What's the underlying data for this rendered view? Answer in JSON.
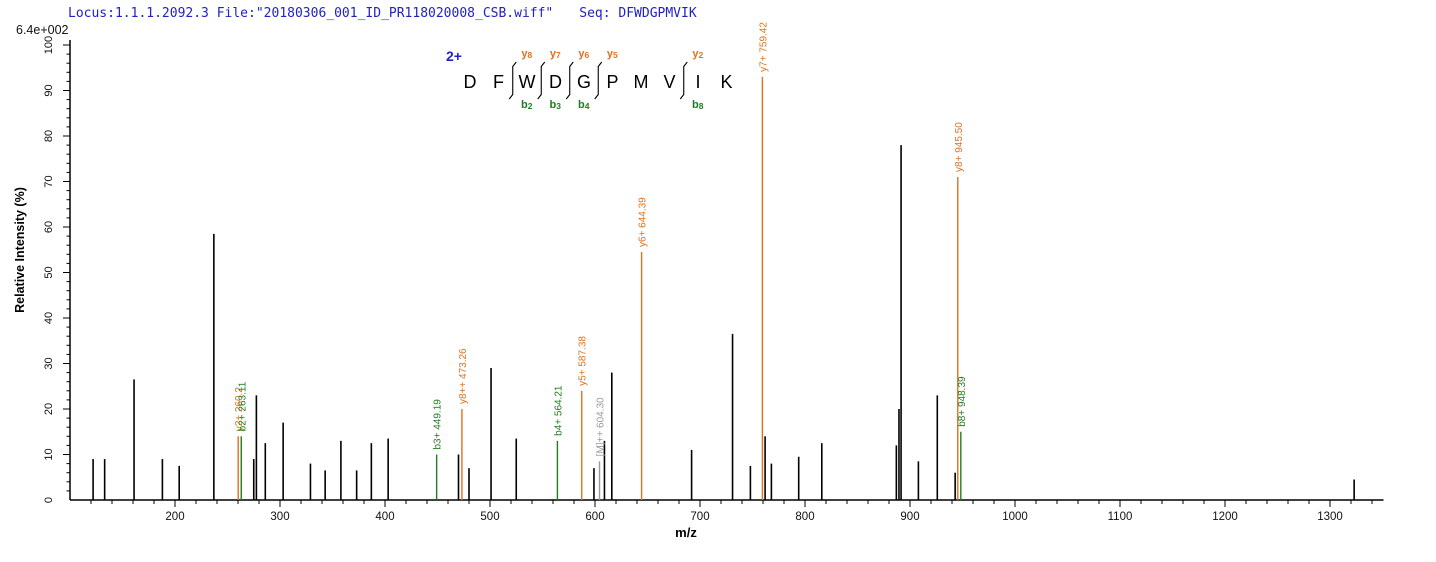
{
  "header": {
    "locus_file": "Locus:1.1.1.2092.3 File:\"20180306_001_ID_PR118020008_CSB.wiff\"",
    "seq_info": "Seq: DFWDGPMVIK",
    "intensity_scale": "6.4e+002"
  },
  "chart_data": {
    "type": "bar",
    "subtype": "ms2-stick-spectrum",
    "xlabel": "m/z",
    "ylabel": "Relative  Intensity (%)",
    "xlim": [
      100,
      1350
    ],
    "ylim": [
      0,
      100
    ],
    "x_major_ticks": [
      200,
      300,
      400,
      500,
      600,
      700,
      800,
      900,
      1000,
      1100,
      1200,
      1300
    ],
    "x_minor_step": 20,
    "y_major_ticks": [
      0,
      10,
      20,
      30,
      40,
      50,
      60,
      70,
      80,
      90,
      100
    ],
    "y_minor_step": 2,
    "grid": "off",
    "precursor_charge": "2+",
    "peptide": {
      "sequence": [
        "D",
        "F",
        "W",
        "D",
        "G",
        "P",
        "M",
        "V",
        "I",
        "K"
      ],
      "cleavages": [
        {
          "after_index": 1,
          "y_label": "y8",
          "b_label": "b2"
        },
        {
          "after_index": 2,
          "y_label": "y7",
          "b_label": "b3"
        },
        {
          "after_index": 3,
          "y_label": "y6",
          "b_label": "b4"
        },
        {
          "after_index": 4,
          "y_label": "y5",
          "b_label": ""
        },
        {
          "after_index": 7,
          "y_label": "y2",
          "b_label": "b8"
        }
      ]
    },
    "annotated_peaks": [
      {
        "mz": 260.2,
        "intensity": 14,
        "ion": "y",
        "label": "y2+ 260.2"
      },
      {
        "mz": 263.11,
        "intensity": 14,
        "ion": "b",
        "label": "b2+ 263.11"
      },
      {
        "mz": 449.19,
        "intensity": 10,
        "ion": "b",
        "label": "b3+ 449.19"
      },
      {
        "mz": 473.26,
        "intensity": 20,
        "ion": "y",
        "label": "y8++ 473.26"
      },
      {
        "mz": 564.21,
        "intensity": 13,
        "ion": "b",
        "label": "b4+ 564.21"
      },
      {
        "mz": 587.38,
        "intensity": 24,
        "ion": "y",
        "label": "y5+ 587.38"
      },
      {
        "mz": 604.3,
        "intensity": 8.5,
        "ion": "precursor",
        "label": "[M]++ 604.30"
      },
      {
        "mz": 644.39,
        "intensity": 54.5,
        "ion": "y",
        "label": "y6+ 644.39"
      },
      {
        "mz": 759.42,
        "intensity": 93,
        "ion": "y",
        "label": "y7+ 759.42"
      },
      {
        "mz": 945.5,
        "intensity": 71,
        "ion": "y",
        "label": "y8+ 945.50"
      },
      {
        "mz": 948.39,
        "intensity": 15,
        "ion": "b",
        "label": "b8+ 948.39"
      }
    ],
    "unassigned_peaks": [
      [
        122,
        9
      ],
      [
        133,
        9
      ],
      [
        161,
        26.5
      ],
      [
        188,
        9
      ],
      [
        204,
        7.5
      ],
      [
        237,
        58.5
      ],
      [
        275,
        9
      ],
      [
        277.5,
        23
      ],
      [
        286,
        12.5
      ],
      [
        303,
        17
      ],
      [
        329,
        8
      ],
      [
        343,
        6.5
      ],
      [
        358,
        13
      ],
      [
        373,
        6.5
      ],
      [
        387,
        12.5
      ],
      [
        403,
        13.5
      ],
      [
        470,
        10
      ],
      [
        480,
        7
      ],
      [
        501,
        29
      ],
      [
        525,
        13.5
      ],
      [
        599,
        7
      ],
      [
        609,
        13
      ],
      [
        616,
        28
      ],
      [
        692,
        11
      ],
      [
        731,
        36.5
      ],
      [
        748,
        7.5
      ],
      [
        762,
        14
      ],
      [
        768,
        8
      ],
      [
        794,
        9.5
      ],
      [
        816,
        12.5
      ],
      [
        887,
        12
      ],
      [
        889.5,
        20
      ],
      [
        891.5,
        78
      ],
      [
        908,
        8.5
      ],
      [
        926,
        23
      ],
      [
        943,
        6
      ],
      [
        1323,
        4.5
      ]
    ]
  },
  "colors": {
    "y_ion": "#e0711f",
    "b_ion": "#1f7d1f",
    "precursor": "#999999",
    "peak": "#000000",
    "header_blue": "#2121c8",
    "axis": "#000000"
  }
}
